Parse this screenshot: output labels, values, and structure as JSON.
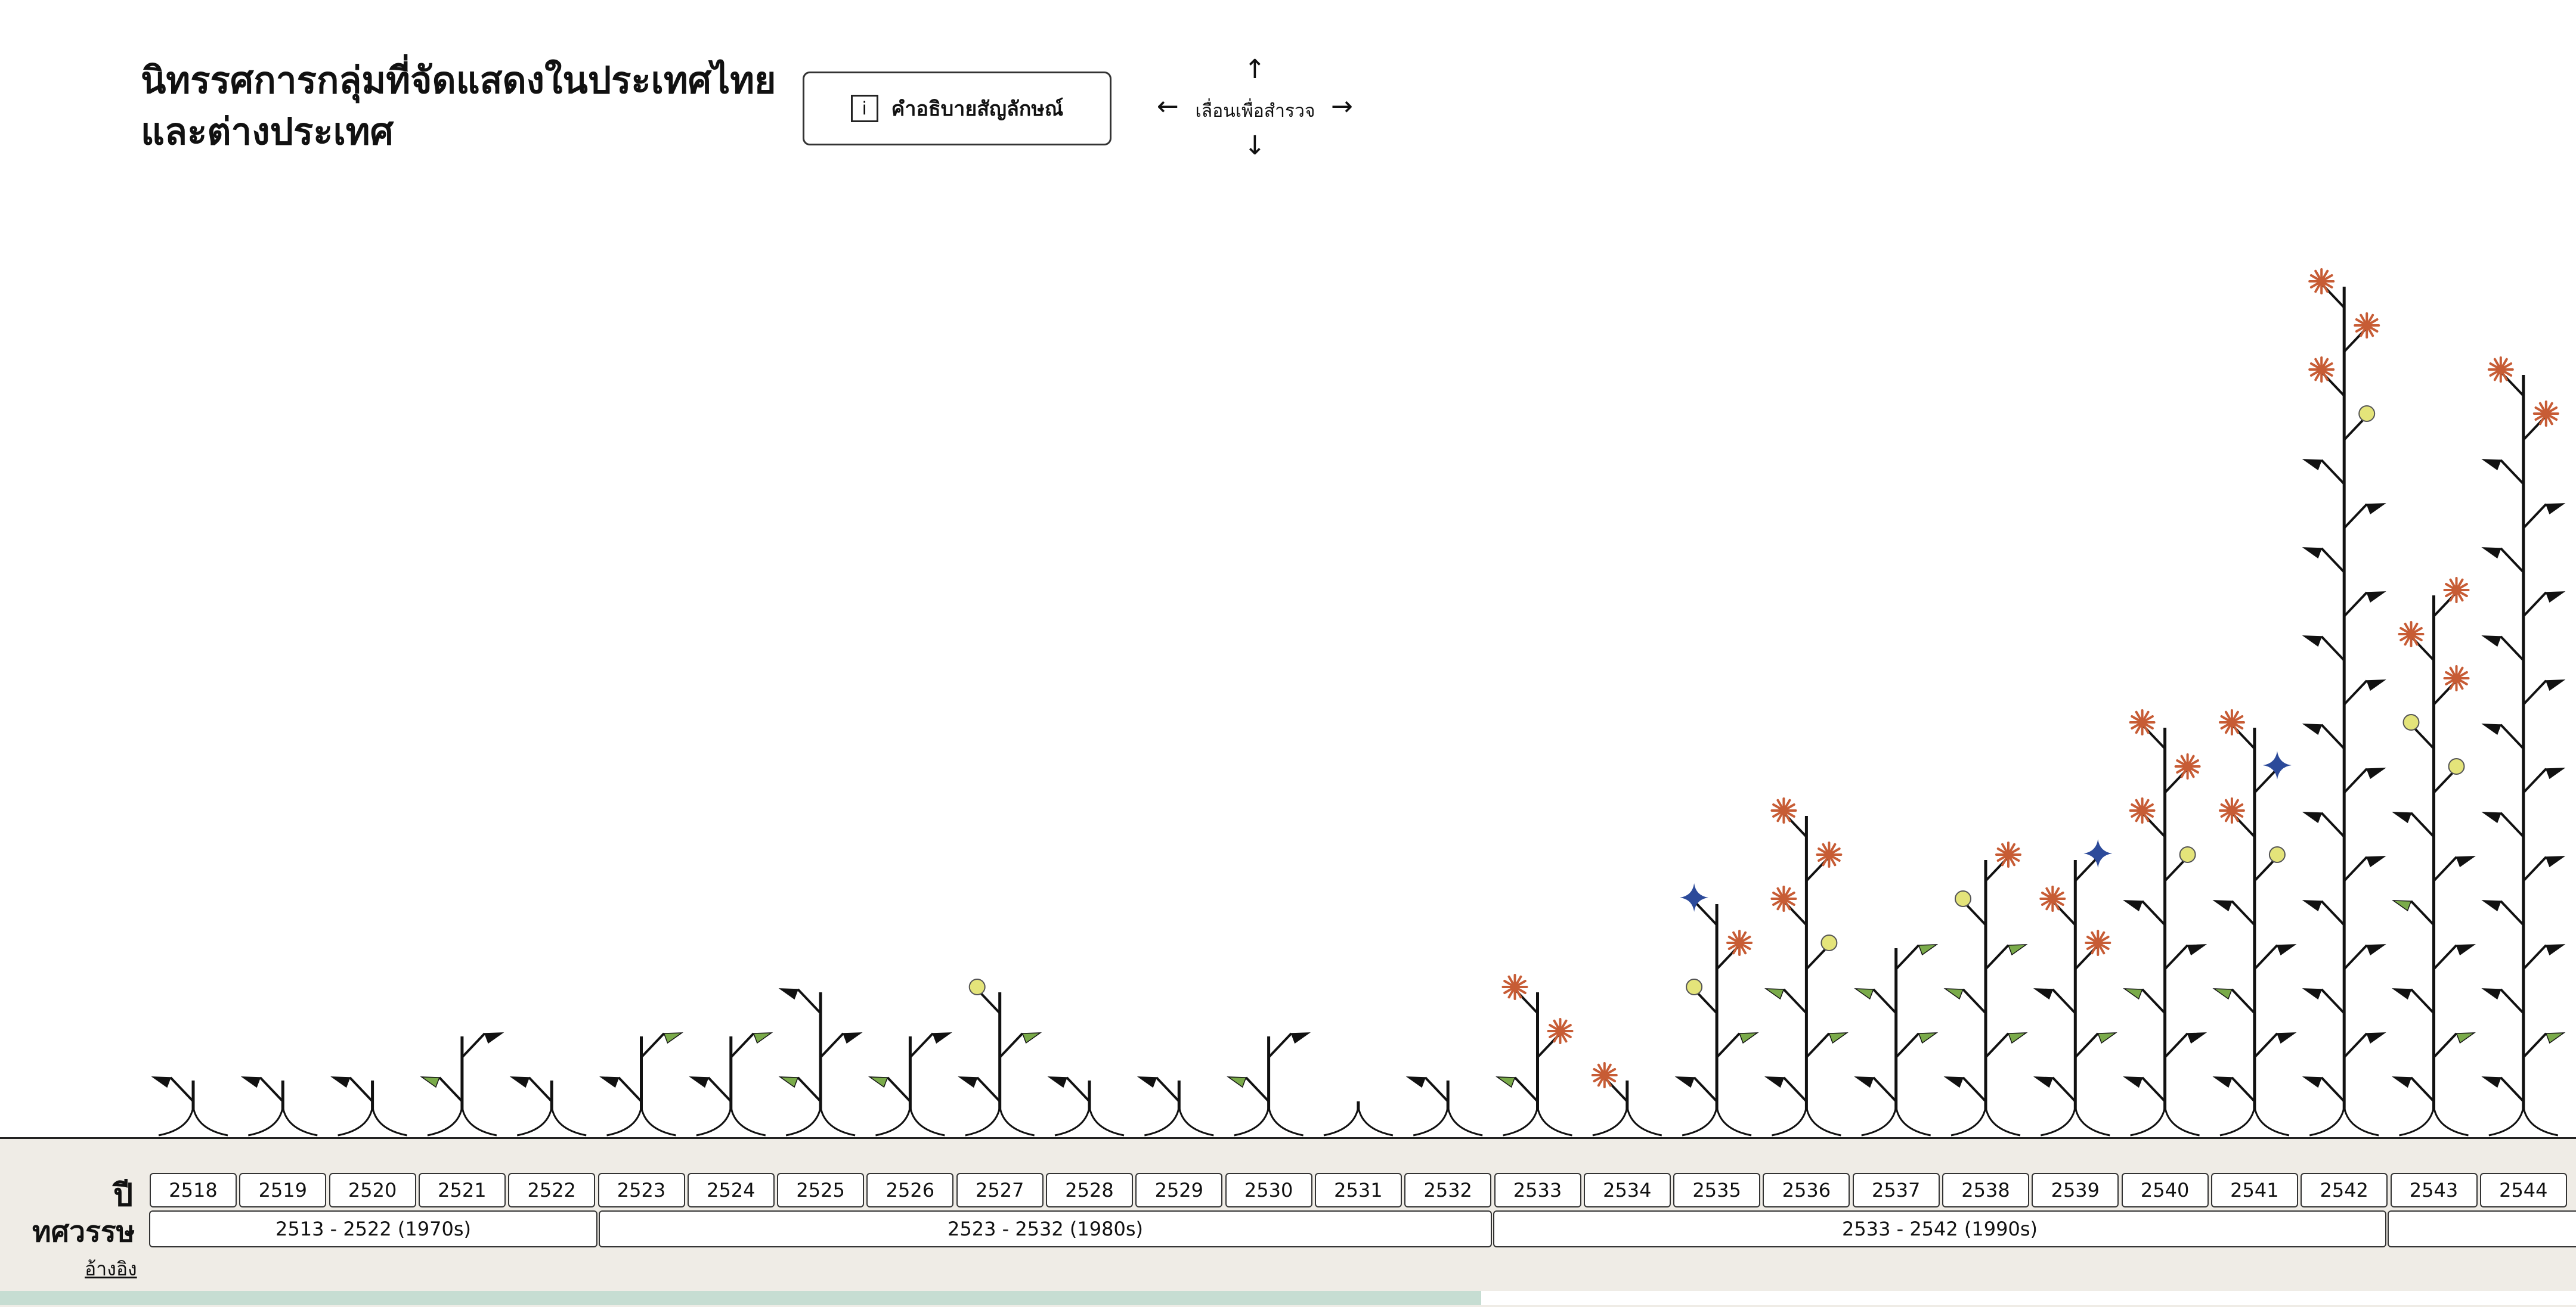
{
  "header": {
    "title_line1": "นิทรรศการกลุ่มที่จัดแสดงในประเทศไทย",
    "title_line2": "และต่างประเทศ",
    "legend_button_label": "คำอธิบายสัญลักษณ์",
    "legend_icon": "info-icon",
    "info_glyph": "i",
    "scroll_hint_label": "เลื่อนเพื่อสำรวจ",
    "arrow_up": "↑",
    "arrow_down": "↓",
    "arrow_left": "←",
    "arrow_right": "→"
  },
  "footer": {
    "year_row_label": "ปี",
    "decade_row_label": "ทศวรรษ",
    "reference_link": "อ้างอิง",
    "years": [
      "2518",
      "2519",
      "2520",
      "2521",
      "2522",
      "2523",
      "2524",
      "2525",
      "2526",
      "2527",
      "2528",
      "2529",
      "2530",
      "2531",
      "2532",
      "2533",
      "2534",
      "2535",
      "2536",
      "2537",
      "2538",
      "2539",
      "2540",
      "2541",
      "2542",
      "2543",
      "2544"
    ],
    "decades": [
      "2513 - 2522  (1970s)",
      "2523 - 2532  (1980s)",
      "2533 - 2542  (1990s)",
      ""
    ],
    "scroll_progress": 0.575
  },
  "colors": {
    "ink": "#111111",
    "flag_green": "#7aab4a",
    "flower_red": "#c75c35",
    "dot_yellow": "#e4e47a",
    "star_blue": "#2c4a9a",
    "footer_bg": "#efece6",
    "progress": "#c6ddd2"
  },
  "chart_data": {
    "type": "stacked-glyph",
    "x": [
      "2518",
      "2519",
      "2520",
      "2521",
      "2522",
      "2523",
      "2524",
      "2525",
      "2526",
      "2527",
      "2528",
      "2529",
      "2530",
      "2531",
      "2532",
      "2533",
      "2534",
      "2535",
      "2536",
      "2537",
      "2538",
      "2539",
      "2540",
      "2541",
      "2542",
      "2543",
      "2544"
    ],
    "marker_types": [
      "black-flag",
      "green-flag",
      "yellow-dot",
      "red-flower",
      "blue-star"
    ],
    "stems": [
      {
        "year": "2518",
        "markers": [
          "black-flag"
        ]
      },
      {
        "year": "2519",
        "markers": [
          "black-flag"
        ]
      },
      {
        "year": "2520",
        "markers": [
          "black-flag"
        ]
      },
      {
        "year": "2521",
        "markers": [
          "green-flag",
          "black-flag"
        ]
      },
      {
        "year": "2522",
        "markers": [
          "black-flag"
        ]
      },
      {
        "year": "2523",
        "markers": [
          "black-flag",
          "green-flag"
        ]
      },
      {
        "year": "2524",
        "markers": [
          "black-flag",
          "green-flag"
        ]
      },
      {
        "year": "2525",
        "markers": [
          "green-flag",
          "black-flag",
          "black-flag"
        ]
      },
      {
        "year": "2526",
        "markers": [
          "green-flag",
          "black-flag"
        ]
      },
      {
        "year": "2527",
        "markers": [
          "black-flag",
          "green-flag",
          "yellow-dot"
        ]
      },
      {
        "year": "2528",
        "markers": [
          "black-flag"
        ]
      },
      {
        "year": "2529",
        "markers": [
          "black-flag"
        ]
      },
      {
        "year": "2530",
        "markers": [
          "green-flag",
          "black-flag"
        ]
      },
      {
        "year": "2531",
        "markers": []
      },
      {
        "year": "2532",
        "markers": [
          "black-flag"
        ]
      },
      {
        "year": "2533",
        "markers": [
          "green-flag",
          "red-flower",
          "red-flower"
        ]
      },
      {
        "year": "2534",
        "markers": [
          "red-flower"
        ]
      },
      {
        "year": "2535",
        "markers": [
          "black-flag",
          "green-flag",
          "yellow-dot",
          "red-flower",
          "blue-star"
        ]
      },
      {
        "year": "2536",
        "markers": [
          "black-flag",
          "green-flag",
          "green-flag",
          "yellow-dot",
          "red-flower",
          "red-flower",
          "red-flower"
        ]
      },
      {
        "year": "2537",
        "markers": [
          "black-flag",
          "green-flag",
          "green-flag",
          "green-flag"
        ]
      },
      {
        "year": "2538",
        "markers": [
          "black-flag",
          "green-flag",
          "green-flag",
          "green-flag",
          "yellow-dot",
          "red-flower"
        ]
      },
      {
        "year": "2539",
        "markers": [
          "black-flag",
          "green-flag",
          "black-flag",
          "red-flower",
          "red-flower",
          "blue-star"
        ]
      },
      {
        "year": "2540",
        "markers": [
          "black-flag",
          "black-flag",
          "green-flag",
          "black-flag",
          "black-flag",
          "yellow-dot",
          "red-flower",
          "red-flower",
          "red-flower"
        ]
      },
      {
        "year": "2541",
        "markers": [
          "black-flag",
          "black-flag",
          "green-flag",
          "black-flag",
          "black-flag",
          "yellow-dot",
          "red-flower",
          "blue-star",
          "red-flower"
        ]
      },
      {
        "year": "2542",
        "markers": [
          "black-flag",
          "black-flag",
          "black-flag",
          "black-flag",
          "black-flag",
          "black-flag",
          "black-flag",
          "black-flag",
          "black-flag",
          "black-flag",
          "black-flag",
          "black-flag",
          "black-flag",
          "black-flag",
          "black-flag",
          "yellow-dot",
          "red-flower",
          "red-flower",
          "red-flower"
        ]
      },
      {
        "year": "2543",
        "markers": [
          "black-flag",
          "green-flag",
          "black-flag",
          "black-flag",
          "green-flag",
          "black-flag",
          "black-flag",
          "yellow-dot",
          "yellow-dot",
          "red-flower",
          "red-flower",
          "red-flower"
        ]
      },
      {
        "year": "2544",
        "markers": [
          "black-flag",
          "green-flag",
          "black-flag",
          "black-flag",
          "black-flag",
          "black-flag",
          "black-flag",
          "black-flag",
          "black-flag",
          "black-flag",
          "black-flag",
          "black-flag",
          "black-flag",
          "black-flag",
          "black-flag",
          "red-flower",
          "red-flower"
        ]
      }
    ]
  }
}
